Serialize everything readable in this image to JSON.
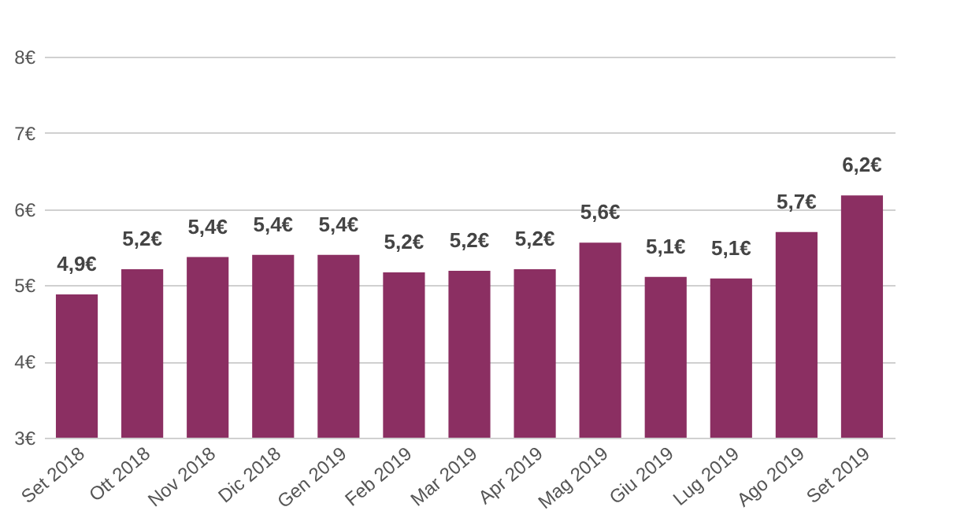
{
  "chart_data": {
    "type": "bar",
    "categories": [
      "Set 2018",
      "Ott 2018",
      "Nov 2018",
      "Dic 2018",
      "Gen 2019",
      "Feb 2019",
      "Mar 2019",
      "Apr 2019",
      "Mag 2019",
      "Giu 2019",
      "Lug 2019",
      "Ago 2019",
      "Set 2019"
    ],
    "values": [
      4.88,
      5.21,
      5.37,
      5.4,
      5.4,
      5.17,
      5.19,
      5.21,
      5.56,
      5.11,
      5.09,
      5.7,
      6.18
    ],
    "value_labels": [
      "4,9€",
      "5,2€",
      "5,4€",
      "5,4€",
      "5,4€",
      "5,2€",
      "5,2€",
      "5,2€",
      "5,6€",
      "5,1€",
      "5,1€",
      "5,7€",
      "6,2€"
    ],
    "color": "#8b2f62",
    "ylim": [
      3,
      8
    ],
    "yticks": [
      {
        "value": 3,
        "label": "3€"
      },
      {
        "value": 4,
        "label": "4€"
      },
      {
        "value": 5,
        "label": "5€"
      },
      {
        "value": 6,
        "label": "6€"
      },
      {
        "value": 7,
        "label": "7€"
      },
      {
        "value": 8,
        "label": "8€"
      }
    ],
    "grid": "y"
  }
}
